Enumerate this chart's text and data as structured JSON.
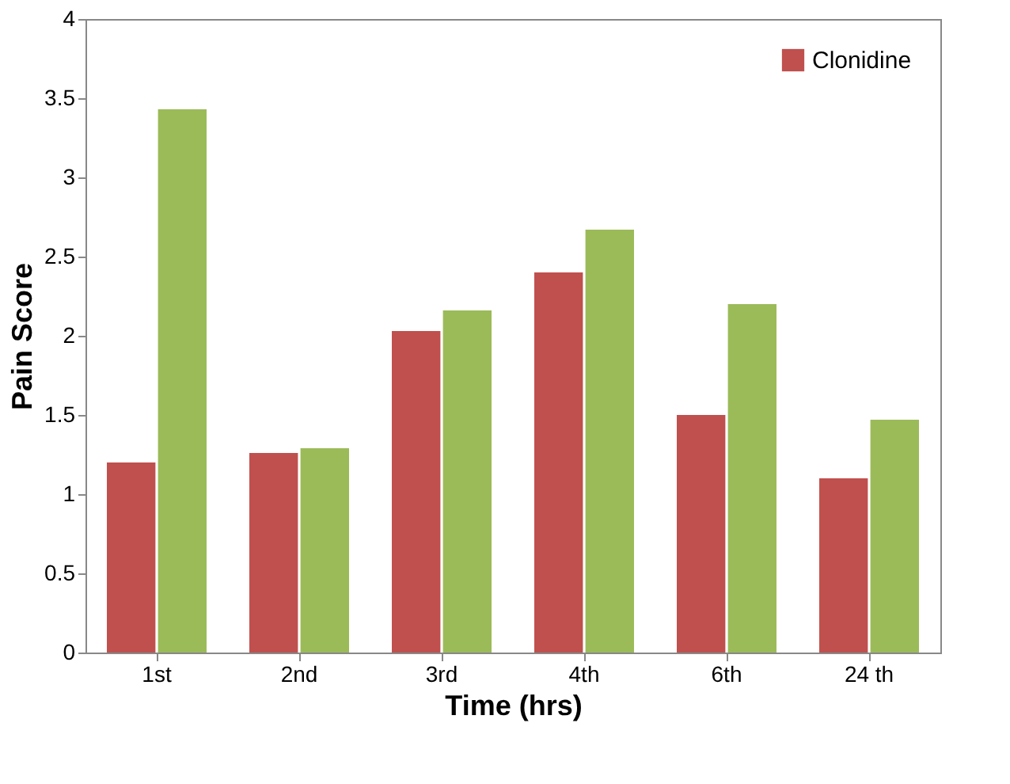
{
  "chart_data": {
    "type": "bar",
    "xlabel": "Time (hrs)",
    "ylabel": "Pain Score",
    "categories": [
      "1st",
      "2nd",
      "3rd",
      "4th",
      "6th",
      "24 th"
    ],
    "series": [
      {
        "name": "Clonidine",
        "color": "#c0504d",
        "values": [
          1.2,
          1.26,
          2.03,
          2.4,
          1.5,
          1.1
        ]
      },
      {
        "color": "#9bbb59",
        "values": [
          3.43,
          1.29,
          2.16,
          2.67,
          2.2,
          1.47
        ]
      }
    ],
    "ylim": [
      0,
      4
    ],
    "yticks": [
      0,
      0.5,
      1,
      1.5,
      2,
      2.5,
      3,
      3.5,
      4
    ],
    "grid": false,
    "legend": "top right"
  }
}
